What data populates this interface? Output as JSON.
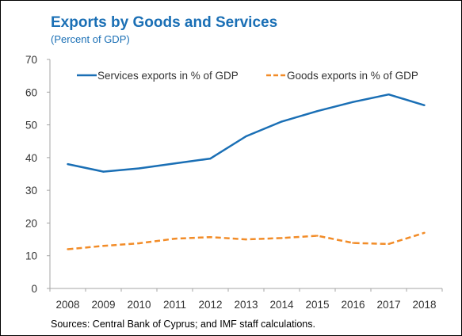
{
  "chart_data": {
    "type": "line",
    "title": "Exports by Goods and Services",
    "subtitle": "(Percent of GDP)",
    "source": "Sources: Central Bank of Cyprus; and IMF staff calculations.",
    "x": [
      "2008",
      "2009",
      "2010",
      "2011",
      "2012",
      "2013",
      "2014",
      "2015",
      "2016",
      "2017",
      "2018"
    ],
    "ylim": [
      0,
      70
    ],
    "yticks": [
      0,
      10,
      20,
      30,
      40,
      50,
      60,
      70
    ],
    "grid": false,
    "legend_position": "top",
    "series": [
      {
        "name": "Services exports in % of GDP",
        "color": "#1a6fb5",
        "style": "solid",
        "values": [
          38.0,
          35.7,
          36.7,
          38.2,
          39.7,
          46.5,
          51.0,
          54.2,
          57.0,
          59.3,
          56.0
        ]
      },
      {
        "name": "Goods exports in % of GDP",
        "color": "#f28c28",
        "style": "dashed",
        "values": [
          12.0,
          13.0,
          13.8,
          15.2,
          15.7,
          15.0,
          15.4,
          16.1,
          13.9,
          13.6,
          17.0
        ]
      }
    ]
  }
}
